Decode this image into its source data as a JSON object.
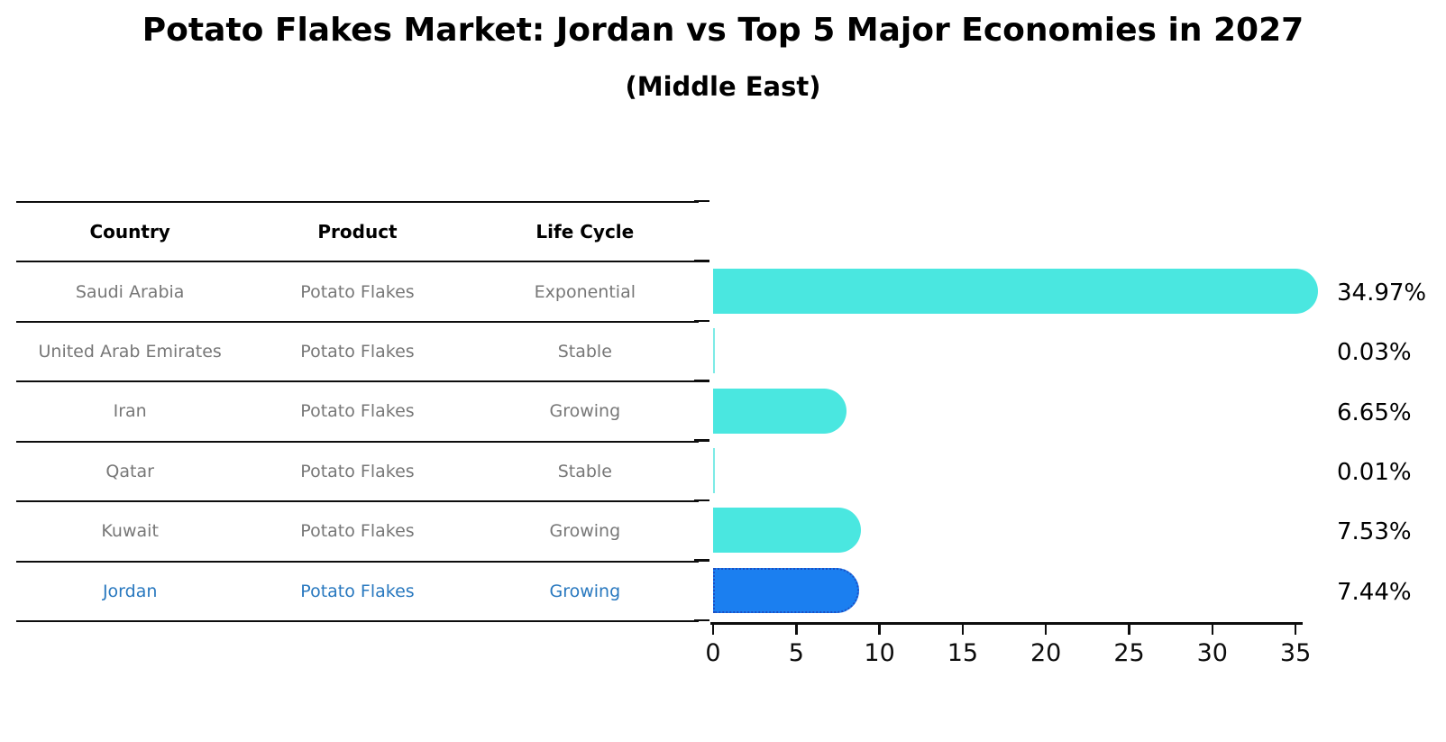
{
  "title": "Potato Flakes Market: Jordan vs Top 5 Major Economies in 2027",
  "subtitle": "(Middle East)",
  "table": {
    "headers": [
      "Country",
      "Product",
      "Life Cycle"
    ],
    "rows": [
      {
        "country": "Saudi Arabia",
        "product": "Potato Flakes",
        "life_cycle": "Exponential",
        "highlight": false
      },
      {
        "country": "United Arab Emirates",
        "product": "Potato Flakes",
        "life_cycle": "Stable",
        "highlight": false
      },
      {
        "country": "Iran",
        "product": "Potato Flakes",
        "life_cycle": "Growing",
        "highlight": false
      },
      {
        "country": "Qatar",
        "product": "Potato Flakes",
        "life_cycle": "Stable",
        "highlight": false
      },
      {
        "country": "Kuwait",
        "product": "Potato Flakes",
        "life_cycle": "Growing",
        "highlight": false
      },
      {
        "country": "Jordan",
        "product": "Potato Flakes",
        "life_cycle": "Growing",
        "highlight": true
      }
    ]
  },
  "chart_data": {
    "type": "bar",
    "orientation": "horizontal",
    "title": "Potato Flakes Market: Jordan vs Top 5 Major Economies in 2027",
    "subtitle": "(Middle East)",
    "categories": [
      "Saudi Arabia",
      "United Arab Emirates",
      "Iran",
      "Qatar",
      "Kuwait",
      "Jordan"
    ],
    "values": [
      34.97,
      0.03,
      6.65,
      0.01,
      7.53,
      7.44
    ],
    "value_labels": [
      "34.97%",
      "0.03%",
      "6.65%",
      "0.01%",
      "7.53%",
      "7.44%"
    ],
    "x_ticks": [
      0,
      5,
      10,
      15,
      20,
      25,
      30,
      35
    ],
    "xlim": [
      0,
      37
    ],
    "grid": false,
    "legend": false,
    "highlight_index": 5,
    "highlight_country": "Jordan"
  },
  "colors": {
    "bar_cyan": "#4AE7E0",
    "bar_small_cyan": "#7DEBE6",
    "bar_blue": "#1B7FF0",
    "bar_blue_border": "#1C4FC4",
    "highlight_text": "#2878BF",
    "cell_text": "#777777",
    "line": "#0D0D0D"
  }
}
